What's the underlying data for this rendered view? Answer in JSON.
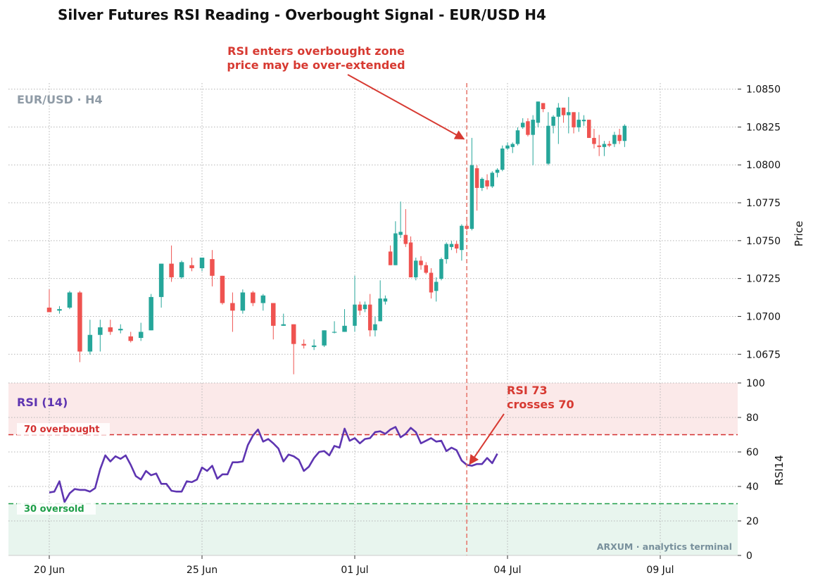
{
  "title": "Silver Futures RSI Reading - Overbought Signal - EUR/USD H4",
  "watermark_symbol": "EUR/USD · H4",
  "rsi_panel_label": "RSI (14)",
  "overbought_label": "70 overbought",
  "oversold_label": "30 oversold",
  "branding": "ARXUM · analytics terminal",
  "annotations": {
    "price_line1": "RSI enters overbought zone",
    "price_line2": "price may be over-extended",
    "rsi_line1": "RSI 73",
    "rsi_line2": "crosses 70"
  },
  "colors": {
    "up": "#26a69a",
    "down": "#ef5350",
    "rsi_line": "#5e35b1",
    "annotation": "#d73a32",
    "overbought": "#d32f2f",
    "oversold": "#1e9e48"
  },
  "chart_data": {
    "type": "candlestick",
    "ylabel": "Price",
    "rsi_ylabel": "RSI14",
    "ylim": [
      1.0657,
      1.0854
    ],
    "rsi_ylim": [
      0,
      100
    ],
    "yticks": [
      "1.0675",
      "1.0700",
      "1.0725",
      "1.0750",
      "1.0775",
      "1.0800",
      "1.0825",
      "1.0850"
    ],
    "rsi_yticks": [
      "0",
      "20",
      "40",
      "60",
      "80",
      "100"
    ],
    "xtick_labels": [
      {
        "label": "20 Jun",
        "index": 0
      },
      {
        "label": "25 Jun",
        "index": 30
      },
      {
        "label": "01 Jul",
        "index": 60
      },
      {
        "label": "04 Jul",
        "index": 90
      },
      {
        "label": "09 Jul",
        "index": 120
      }
    ],
    "signal_index": 82,
    "overbought_level": 70,
    "oversold_level": 30,
    "candles": [
      [
        1.07058,
        1.07178,
        1.07028,
        1.07028
      ],
      [
        1.07038,
        1.07068,
        1.07018,
        1.07048
      ],
      [
        1.07058,
        1.07168,
        1.07048,
        1.07158
      ],
      [
        1.07158,
        1.07168,
        1.06698,
        1.06768
      ],
      [
        1.06768,
        1.06978,
        1.06748,
        1.06878
      ],
      [
        1.06878,
        1.06978,
        1.06768,
        1.06928
      ],
      [
        1.06928,
        1.06978,
        1.06878,
        1.06898
      ],
      [
        1.06908,
        1.06948,
        1.06888,
        1.06918
      ],
      [
        1.06868,
        1.06898,
        1.06828,
        1.06838
      ],
      [
        1.06858,
        1.06958,
        1.06838,
        1.06898
      ],
      [
        1.06908,
        1.07148,
        1.06908,
        1.07128
      ],
      [
        1.07128,
        1.07348,
        1.07058,
        1.07348
      ],
      [
        1.07348,
        1.07468,
        1.07228,
        1.07258
      ],
      [
        1.07258,
        1.07368,
        1.07248,
        1.07358
      ],
      [
        1.07338,
        1.07388,
        1.07298,
        1.07318
      ],
      [
        1.07318,
        1.07388,
        1.07298,
        1.07388
      ],
      [
        1.07378,
        1.07438,
        1.07198,
        1.07268
      ],
      [
        1.07268,
        1.07268,
        1.07078,
        1.07088
      ],
      [
        1.07088,
        1.07158,
        1.06898,
        1.07038
      ],
      [
        1.07038,
        1.07178,
        1.07018,
        1.07158
      ],
      [
        1.07158,
        1.07168,
        1.07068,
        1.07088
      ],
      [
        1.07088,
        1.07148,
        1.07038,
        1.07138
      ],
      [
        1.07088,
        1.07088,
        1.06848,
        1.06938
      ],
      [
        1.06938,
        1.07018,
        1.06938,
        1.06948
      ],
      [
        1.06948,
        1.06948,
        1.06618,
        1.06818
      ],
      [
        1.06818,
        1.06848,
        1.06788,
        1.06808
      ],
      [
        1.06798,
        1.06848,
        1.06778,
        1.06808
      ],
      [
        1.06808,
        1.06908,
        1.06798,
        1.06908
      ],
      [
        1.06898,
        1.06968,
        1.06888,
        1.06898
      ],
      [
        1.06898,
        1.07048,
        1.06898,
        1.06938
      ],
      [
        1.06938,
        1.07268,
        1.06898,
        1.07078
      ],
      [
        1.07078,
        1.07098,
        1.07008,
        1.07038
      ],
      [
        1.07048,
        1.07098,
        1.07028,
        1.07078
      ],
      [
        1.07078,
        1.07148,
        1.06868,
        1.06908
      ],
      [
        1.06908,
        1.06998,
        1.06868,
        1.06948
      ],
      [
        1.06968,
        1.07238,
        1.06968,
        1.07118
      ],
      [
        1.07098,
        1.07138,
        1.07078,
        1.07118
      ],
      [
        1.07428,
        1.07468,
        1.07338,
        1.07338
      ],
      [
        1.07338,
        1.07628,
        1.07338,
        1.07548
      ],
      [
        1.07538,
        1.07758,
        1.07518,
        1.07558
      ],
      [
        1.07538,
        1.07708,
        1.07458,
        1.07478
      ],
      [
        1.07488,
        1.07528,
        1.07258,
        1.07258
      ],
      [
        1.07258,
        1.07388,
        1.07238,
        1.07368
      ],
      [
        1.07368,
        1.07398,
        1.07308,
        1.07338
      ],
      [
        1.07338,
        1.07358,
        1.07278,
        1.07288
      ],
      [
        1.07288,
        1.07318,
        1.07118,
        1.07158
      ],
      [
        1.07168,
        1.07258,
        1.07098,
        1.07228
      ],
      [
        1.07248,
        1.07388,
        1.07238,
        1.07378
      ],
      [
        1.07378,
        1.07488,
        1.07348,
        1.07478
      ],
      [
        1.07458,
        1.07498,
        1.07438,
        1.07478
      ],
      [
        1.07478,
        1.07498,
        1.07418,
        1.07448
      ],
      [
        1.07438,
        1.07608,
        1.07368,
        1.07598
      ],
      [
        1.07598,
        1.07648,
        1.07568,
        1.07578
      ],
      [
        1.07578,
        1.08178,
        1.07568,
        1.07998
      ],
      [
        1.07978,
        1.07998,
        1.07698,
        1.07848
      ],
      [
        1.07848,
        1.07918,
        1.07828,
        1.07908
      ],
      [
        1.07898,
        1.07938,
        1.07838,
        1.07858
      ],
      [
        1.07858,
        1.07958,
        1.07848,
        1.07948
      ],
      [
        1.07948,
        1.07978,
        1.07918,
        1.07968
      ],
      [
        1.07968,
        1.08128,
        1.07958,
        1.08108
      ],
      [
        1.08108,
        1.08148,
        1.08098,
        1.08128
      ],
      [
        1.08118,
        1.08148,
        1.08078,
        1.08138
      ],
      [
        1.08138,
        1.08248,
        1.08128,
        1.08228
      ],
      [
        1.08248,
        1.08308,
        1.08238,
        1.08278
      ],
      [
        1.08288,
        1.08308,
        1.08188,
        1.08198
      ],
      [
        1.08198,
        1.08328,
        1.07998,
        1.08298
      ],
      [
        1.08278,
        1.08418,
        1.08248,
        1.08418
      ],
      [
        1.08408,
        1.08408,
        1.08348,
        1.08368
      ],
      [
        1.08008,
        1.08348,
        1.07998,
        1.08258
      ],
      [
        1.08258,
        1.08328,
        1.08208,
        1.08318
      ],
      [
        1.08318,
        1.08408,
        1.08138,
        1.08378
      ],
      [
        1.08378,
        1.08378,
        1.08278,
        1.08328
      ],
      [
        1.08328,
        1.08448,
        1.08208,
        1.08348
      ],
      [
        1.08348,
        1.08348,
        1.08208,
        1.08248
      ],
      [
        1.08248,
        1.08348,
        1.08218,
        1.08298
      ],
      [
        1.08288,
        1.08328,
        1.08258,
        1.08298
      ],
      [
        1.08298,
        1.08298,
        1.08178,
        1.08178
      ],
      [
        1.08178,
        1.08238,
        1.08108,
        1.08138
      ],
      [
        1.08128,
        1.08198,
        1.08058,
        1.08118
      ],
      [
        1.08118,
        1.08158,
        1.08058,
        1.08138
      ],
      [
        1.08138,
        1.08158,
        1.08118,
        1.08128
      ],
      [
        1.08138,
        1.08218,
        1.08118,
        1.08198
      ],
      [
        1.08198,
        1.08238,
        1.08138,
        1.08158
      ],
      [
        1.08158,
        1.08268,
        1.08118,
        1.08258
      ]
    ],
    "candle_indices": [
      0,
      2,
      4,
      6,
      8,
      10,
      12,
      14,
      16,
      18,
      20,
      22,
      24,
      26,
      28,
      30,
      32,
      34,
      36,
      38,
      40,
      42,
      44,
      46,
      48,
      50,
      52,
      54,
      56,
      58,
      60,
      61,
      62,
      63,
      64,
      65,
      66,
      67,
      68,
      69,
      70,
      71,
      72,
      73,
      74,
      75,
      76,
      77,
      78,
      79,
      80,
      81,
      82,
      83,
      84,
      85,
      86,
      87,
      88,
      89,
      90,
      91,
      92,
      93,
      94,
      95,
      96,
      97,
      98,
      99,
      100,
      101,
      102,
      103,
      104,
      105,
      106,
      107,
      108,
      109,
      110,
      111,
      112,
      113
    ],
    "rsi": [
      [
        0,
        36.5
      ],
      [
        2,
        37
      ],
      [
        4,
        43
      ],
      [
        6,
        31
      ],
      [
        8,
        36
      ],
      [
        10,
        38.5
      ],
      [
        12,
        38
      ],
      [
        14,
        38
      ],
      [
        16,
        37
      ],
      [
        18,
        39
      ],
      [
        20,
        50
      ],
      [
        22,
        58
      ],
      [
        24,
        54.5
      ],
      [
        26,
        57.5
      ],
      [
        28,
        56
      ],
      [
        30,
        58
      ],
      [
        32,
        52.5
      ],
      [
        34,
        46
      ],
      [
        36,
        44
      ],
      [
        38,
        49
      ],
      [
        40,
        46.5
      ],
      [
        42,
        47.5
      ],
      [
        44,
        41.5
      ],
      [
        46,
        41.5
      ],
      [
        48,
        37.5
      ],
      [
        50,
        37
      ],
      [
        52,
        37
      ],
      [
        54,
        43
      ],
      [
        56,
        42.5
      ],
      [
        58,
        44
      ],
      [
        60,
        51
      ],
      [
        62,
        49
      ],
      [
        64,
        52
      ],
      [
        66,
        44.5
      ],
      [
        68,
        47
      ],
      [
        70,
        47
      ],
      [
        72,
        54
      ],
      [
        74,
        54
      ],
      [
        76,
        54.5
      ],
      [
        78,
        64
      ],
      [
        80,
        69.5
      ],
      [
        82,
        73
      ],
      [
        84,
        66
      ],
      [
        86,
        67.5
      ],
      [
        88,
        65
      ],
      [
        90,
        62
      ],
      [
        92,
        54.5
      ],
      [
        94,
        58.5
      ],
      [
        96,
        57.5
      ],
      [
        98,
        55.5
      ],
      [
        100,
        49
      ],
      [
        102,
        51.5
      ],
      [
        104,
        56.5
      ],
      [
        106,
        60
      ],
      [
        108,
        60.5
      ],
      [
        110,
        58
      ],
      [
        112,
        63.5
      ],
      [
        114,
        62.5
      ],
      [
        116,
        73.5
      ],
      [
        118,
        66.5
      ],
      [
        120,
        68
      ],
      [
        122,
        65
      ],
      [
        124,
        67.5
      ],
      [
        126,
        68
      ],
      [
        128,
        71.5
      ],
      [
        130,
        72
      ],
      [
        132,
        70.5
      ],
      [
        134,
        73
      ],
      [
        136,
        74.5
      ],
      [
        138,
        68.5
      ],
      [
        140,
        70.5
      ],
      [
        142,
        74
      ],
      [
        144,
        71.5
      ],
      [
        146,
        65
      ],
      [
        148,
        66.5
      ],
      [
        150,
        68
      ],
      [
        152,
        66
      ],
      [
        154,
        66.5
      ],
      [
        156,
        60.5
      ],
      [
        158,
        62.5
      ],
      [
        160,
        61
      ],
      [
        162,
        55
      ],
      [
        164,
        52.5
      ],
      [
        166,
        52
      ],
      [
        168,
        53
      ],
      [
        170,
        53
      ],
      [
        172,
        56.5
      ],
      [
        174,
        53.5
      ],
      [
        176,
        59
      ]
    ]
  }
}
